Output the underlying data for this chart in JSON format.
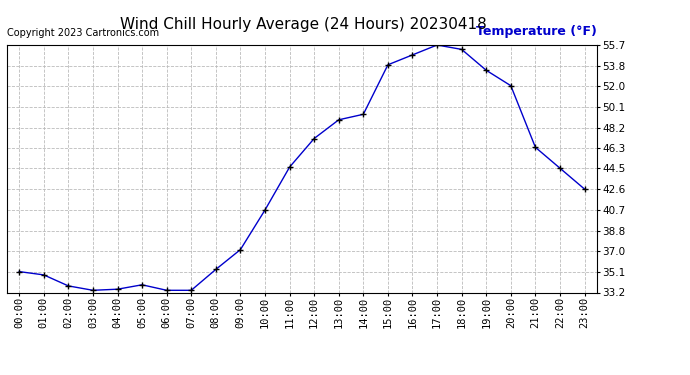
{
  "title": "Wind Chill Hourly Average (24 Hours) 20230418",
  "copyright": "Copyright 2023 Cartronics.com",
  "ylabel": "Temperature (°F)",
  "ylabel_color": "#0000cc",
  "line_color": "#0000cc",
  "marker": "+",
  "marker_color": "#000000",
  "background_color": "#ffffff",
  "grid_color": "#bbbbbb",
  "hours": [
    "00:00",
    "01:00",
    "02:00",
    "03:00",
    "04:00",
    "05:00",
    "06:00",
    "07:00",
    "08:00",
    "09:00",
    "10:00",
    "11:00",
    "12:00",
    "13:00",
    "14:00",
    "15:00",
    "16:00",
    "17:00",
    "18:00",
    "19:00",
    "20:00",
    "21:00",
    "22:00",
    "23:00"
  ],
  "values": [
    35.1,
    34.8,
    33.8,
    33.4,
    33.5,
    33.9,
    33.4,
    33.4,
    35.3,
    37.1,
    40.7,
    44.6,
    47.2,
    48.9,
    49.4,
    53.9,
    54.8,
    55.7,
    55.3,
    53.4,
    52.0,
    46.4,
    44.5,
    42.6
  ],
  "yticks": [
    33.2,
    35.1,
    37.0,
    38.8,
    40.7,
    42.6,
    44.5,
    46.3,
    48.2,
    50.1,
    52.0,
    53.8,
    55.7
  ],
  "ylim": [
    33.2,
    55.7
  ],
  "title_fontsize": 11,
  "copyright_fontsize": 7,
  "ylabel_fontsize": 9,
  "tick_fontsize": 7.5
}
